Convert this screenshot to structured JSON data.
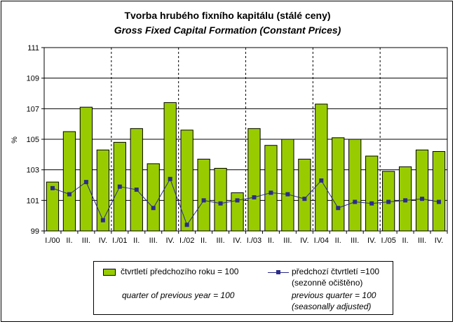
{
  "title": "Tvorba hrubého fixního kapitálu (stálé ceny)",
  "subtitle": "Gross Fixed Capital Formation (Constant Prices)",
  "legend": {
    "bars_cz": "čtvrtletí předchozího roku = 100",
    "bars_en": "quarter of previous year = 100",
    "line_cz": "předchozí čtvrtletí =100",
    "line_cz2": "(sezonně očištěno)",
    "line_en": "previous quarter = 100",
    "line_en2": "(seasonally adjusted)"
  },
  "colors": {
    "bar": "#99cc00",
    "line": "#2c2c8a",
    "plot_bg": "#ffffff"
  },
  "chart_data": {
    "type": "bar",
    "title": "Tvorba hrubého fixního kapitálu (stálé ceny)",
    "subtitle": "Gross Fixed Capital Formation (Constant Prices)",
    "ylabel": "%",
    "xlabel": "",
    "ylim": [
      99,
      111
    ],
    "yticks": [
      99,
      101,
      103,
      105,
      107,
      109,
      111
    ],
    "categories": [
      "I./00",
      "II.",
      "III.",
      "IV.",
      "I./01",
      "II.",
      "III.",
      "IV.",
      "I./02",
      "II.",
      "III.",
      "IV.",
      "I./03",
      "II.",
      "III.",
      "IV.",
      "I./04",
      "II.",
      "III.",
      "IV.",
      "I./05",
      "II.",
      "III.",
      "IV."
    ],
    "series": [
      {
        "name": "čtvrtletí předchozího roku = 100",
        "type": "bar",
        "values": [
          102.2,
          105.5,
          107.1,
          104.3,
          104.8,
          105.7,
          103.4,
          107.4,
          105.6,
          103.7,
          103.1,
          101.5,
          105.7,
          104.6,
          105.0,
          103.7,
          107.3,
          105.1,
          105.0,
          103.9,
          102.9,
          103.2,
          104.3,
          104.2
        ]
      },
      {
        "name": "předchozí čtvrtletí =100",
        "type": "line",
        "values": [
          101.8,
          101.4,
          102.2,
          99.7,
          101.9,
          101.7,
          100.5,
          102.4,
          99.4,
          101.0,
          100.8,
          101.0,
          101.2,
          101.5,
          101.4,
          101.1,
          102.3,
          100.5,
          100.9,
          100.8,
          100.9,
          101.0,
          101.1,
          100.9
        ]
      }
    ],
    "grid": true,
    "legend_position": "bottom"
  }
}
